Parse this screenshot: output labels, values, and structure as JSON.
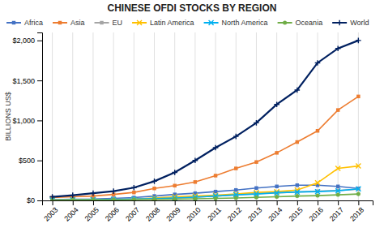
{
  "chart_data": {
    "type": "line",
    "title": "CHINESE OFDI STOCKS BY REGION",
    "ylabel": "BILLIONS US$",
    "x": [
      2003,
      2004,
      2005,
      2006,
      2007,
      2008,
      2009,
      2010,
      2011,
      2012,
      2013,
      2014,
      2015,
      2016,
      2017,
      2018
    ],
    "series": [
      {
        "name": "Africa",
        "color": "#4472C4",
        "marker": "square",
        "values": [
          10,
          15,
          17,
          25,
          35,
          55,
          75,
          90,
          110,
          130,
          155,
          175,
          190,
          190,
          175,
          150
        ]
      },
      {
        "name": "Asia",
        "color": "#ED7D31",
        "marker": "square",
        "values": [
          35,
          45,
          55,
          75,
          100,
          150,
          185,
          230,
          310,
          400,
          480,
          595,
          730,
          870,
          1130,
          1300
        ]
      },
      {
        "name": "EU",
        "color": "#A5A5A5",
        "marker": "square",
        "values": [
          5,
          8,
          10,
          15,
          20,
          25,
          30,
          40,
          55,
          70,
          85,
          95,
          105,
          115,
          125,
          140
        ]
      },
      {
        "name": "Latin America",
        "color": "#FFC000",
        "marker": "x",
        "values": [
          5,
          7,
          10,
          12,
          15,
          30,
          45,
          55,
          65,
          80,
          100,
          110,
          130,
          220,
          400,
          430
        ]
      },
      {
        "name": "North America",
        "color": "#00B0F0",
        "marker": "x",
        "values": [
          5,
          7,
          9,
          12,
          18,
          22,
          30,
          40,
          55,
          70,
          80,
          95,
          105,
          110,
          120,
          145
        ]
      },
      {
        "name": "Oceania",
        "color": "#70AD47",
        "marker": "circle",
        "values": [
          3,
          5,
          6,
          8,
          10,
          12,
          15,
          20,
          25,
          30,
          38,
          45,
          55,
          60,
          70,
          80
        ]
      },
      {
        "name": "World",
        "color": "#002060",
        "marker": "plus",
        "values": [
          45,
          65,
          90,
          115,
          160,
          240,
          350,
          500,
          660,
          800,
          970,
          1200,
          1380,
          1720,
          1900,
          2000
        ]
      }
    ],
    "xlim": [
      2002.5,
      2018.7
    ],
    "xticks": [
      2003,
      2004,
      2005,
      2006,
      2007,
      2008,
      2009,
      2010,
      2011,
      2012,
      2013,
      2014,
      2015,
      2016,
      2017,
      2018
    ],
    "ylim": [
      0,
      2100
    ],
    "yticks": [
      {
        "value": 0,
        "label": "$0"
      },
      {
        "value": 500,
        "label": "$500"
      },
      {
        "value": 1000,
        "label": "$1,000"
      },
      {
        "value": 1500,
        "label": "$1,500"
      },
      {
        "value": 2000,
        "label": "$2,000"
      }
    ],
    "grid": "x",
    "legend": "top"
  }
}
